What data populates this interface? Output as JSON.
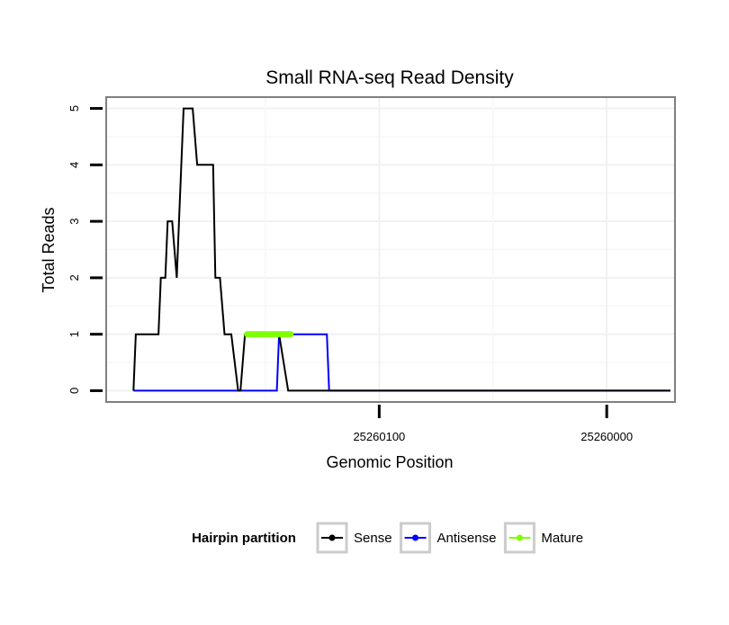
{
  "chart_data": {
    "type": "line",
    "title": "Small RNA-seq Read Density",
    "xlabel": "Genomic Position",
    "ylabel": "Total Reads",
    "xlim": [
      25260220,
      25259970
    ],
    "ylim": [
      -0.2,
      5.2
    ],
    "x_reversed": true,
    "x_ticks": [
      {
        "value": 25260100,
        "label": "25260100"
      },
      {
        "value": 25260000,
        "label": "25260000"
      }
    ],
    "y_ticks": [
      {
        "value": 0,
        "label": "0"
      },
      {
        "value": 1,
        "label": "1"
      },
      {
        "value": 2,
        "label": "2"
      },
      {
        "value": 3,
        "label": "3"
      },
      {
        "value": 4,
        "label": "4"
      },
      {
        "value": 5,
        "label": "5"
      }
    ],
    "grid": true,
    "legend": {
      "title": "Hairpin partition",
      "position": "bottom",
      "entries": [
        "Sense",
        "Antisense",
        "Mature"
      ]
    },
    "series": [
      {
        "name": "Sense",
        "color": "#000000",
        "x": [
          25260208,
          25260207,
          25260197,
          25260196,
          25260194,
          25260193,
          25260191,
          25260189,
          25260188,
          25260186,
          25260182,
          25260180,
          25260177,
          25260173,
          25260172,
          25260170,
          25260168,
          25260167,
          25260165,
          25260162,
          25260161,
          25260159,
          25260158,
          25260156,
          25260155,
          25260144,
          25260140,
          25260138,
          25259972
        ],
        "values": [
          0,
          1,
          1,
          2,
          2,
          3,
          3,
          2,
          3,
          5,
          5,
          4,
          4,
          4,
          2,
          2,
          1,
          1,
          1,
          0,
          0,
          1,
          1,
          1,
          1,
          1,
          0,
          0,
          0
        ]
      },
      {
        "name": "Antisense",
        "color": "#0000ff",
        "x": [
          25260208,
          25260145,
          25260144,
          25260123,
          25260122,
          25259972
        ],
        "values": [
          0,
          0,
          1,
          1,
          0,
          0
        ]
      },
      {
        "name": "Mature",
        "color": "#7fff00",
        "x": [
          25260158,
          25260157,
          25260156,
          25260155,
          25260154,
          25260153,
          25260152,
          25260151,
          25260150,
          25260149,
          25260148,
          25260147,
          25260146,
          25260145,
          25260144,
          25260143,
          25260142,
          25260141,
          25260140,
          25260139
        ],
        "values": [
          1,
          1,
          1,
          1,
          1,
          1,
          1,
          1,
          1,
          1,
          1,
          1,
          1,
          1,
          1,
          1,
          1,
          1,
          1,
          1
        ]
      }
    ]
  }
}
